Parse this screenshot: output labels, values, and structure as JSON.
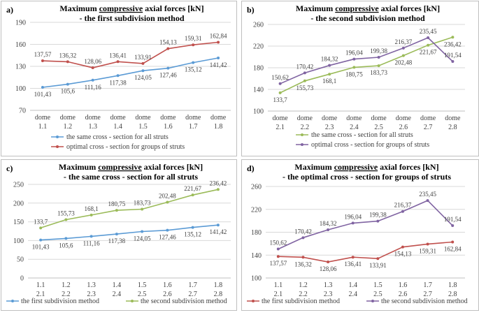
{
  "chart_data": [
    {
      "type": "line",
      "panel_label": "a)",
      "title_prefix": "Maximum ",
      "title_emphasis": "compressive",
      "title_suffix": " axial forces [kN]",
      "subtitle": "- the first subdivision method",
      "categories": [
        [
          "dome",
          "1.1"
        ],
        [
          "dome",
          "1.2"
        ],
        [
          "dome",
          "1.3"
        ],
        [
          "dome",
          "1.4"
        ],
        [
          "dome",
          "1.5"
        ],
        [
          "dome",
          "1.6"
        ],
        [
          "dome",
          "1.7"
        ],
        [
          "dome",
          "1.8"
        ]
      ],
      "ylim": [
        70,
        190
      ],
      "yticks": [
        70,
        100,
        130,
        160,
        190
      ],
      "series": [
        {
          "name": "the same cross - section for all struts",
          "color": "#5B9BD5",
          "values": [
            101.43,
            105.6,
            111.16,
            117.38,
            124.05,
            127.46,
            135.12,
            141.42
          ],
          "labels": [
            "101,43",
            "105,6",
            "111,16",
            "117,38",
            "124,05",
            "127,46",
            "135,12",
            "141,42"
          ],
          "label_pos": "below"
        },
        {
          "name": "optimal cross - section for groups of struts",
          "color": "#C0504D",
          "values": [
            137.57,
            136.32,
            128.06,
            136.41,
            133.91,
            154.13,
            159.31,
            162.84
          ],
          "labels": [
            "137,57",
            "136,32",
            "128,06",
            "136,41",
            "133,91",
            "154,13",
            "159,31",
            "162,84"
          ],
          "label_pos": "above"
        }
      ]
    },
    {
      "type": "line",
      "panel_label": "b)",
      "title_prefix": "Maximum ",
      "title_emphasis": "compressive",
      "title_suffix": " axial forces [kN]",
      "subtitle": "- the second subdivision method",
      "categories": [
        [
          "dome",
          "2.1"
        ],
        [
          "dome",
          "2.2"
        ],
        [
          "dome",
          "2.3"
        ],
        [
          "dome",
          "2.4"
        ],
        [
          "dome",
          "2.5"
        ],
        [
          "dome",
          "2.6"
        ],
        [
          "dome",
          "2.7"
        ],
        [
          "dome",
          "2.8"
        ]
      ],
      "ylim": [
        100,
        260
      ],
      "yticks": [
        100,
        140,
        180,
        220,
        260
      ],
      "series": [
        {
          "name": "the same cross - section for all struts",
          "color": "#9BBB59",
          "values": [
            133.7,
            155.73,
            168.1,
            180.75,
            183.73,
            202.48,
            221.67,
            236.42
          ],
          "labels": [
            "133,7",
            "155,73",
            "168,1",
            "180,75",
            "183,73",
            "202,48",
            "221,67",
            "236,42"
          ],
          "label_pos": "below"
        },
        {
          "name": "optimal cross - section for groups of struts",
          "color": "#8064A2",
          "values": [
            150.62,
            170.42,
            184.32,
            196.04,
            199.38,
            216.37,
            235.45,
            191.54
          ],
          "labels": [
            "150,62",
            "170,42",
            "184,32",
            "196,04",
            "199,38",
            "216,37",
            "235,45",
            "191,54"
          ],
          "label_pos": "above"
        }
      ]
    },
    {
      "type": "line",
      "panel_label": "c)",
      "title_prefix": "Maximum ",
      "title_emphasis": "compressive",
      "title_suffix": " axial forces [kN]",
      "subtitle": "- the same cross - section for all struts",
      "categories": [
        [
          "1.1",
          "2.1"
        ],
        [
          "1.2",
          "2.2"
        ],
        [
          "1.3",
          "2.3"
        ],
        [
          "1.4",
          "2.4"
        ],
        [
          "1.5",
          "2.5"
        ],
        [
          "1.6",
          "2.6"
        ],
        [
          "1.7",
          "2.7"
        ],
        [
          "1.8",
          "2.8"
        ]
      ],
      "ylim": [
        0,
        250
      ],
      "yticks": [
        0,
        50,
        100,
        150,
        200,
        250
      ],
      "series": [
        {
          "name": "the first subdivision method",
          "color": "#5B9BD5",
          "values": [
            101.43,
            105.6,
            111.16,
            117.38,
            124.05,
            127.46,
            135.12,
            141.42
          ],
          "labels": [
            "101,43",
            "105,6",
            "111,16",
            "117,38",
            "124,05",
            "127,46",
            "135,12",
            "141,42"
          ],
          "label_pos": "below"
        },
        {
          "name": "the second subdivision method",
          "color": "#9BBB59",
          "values": [
            133.7,
            155.73,
            168.1,
            180.75,
            183.73,
            202.48,
            221.67,
            236.42
          ],
          "labels": [
            "133,7",
            "155,73",
            "168,1",
            "180,75",
            "183,73",
            "202,48",
            "221,67",
            "236,42"
          ],
          "label_pos": "above"
        }
      ]
    },
    {
      "type": "line",
      "panel_label": "d)",
      "title_prefix": "Maximum ",
      "title_emphasis": "compressive",
      "title_suffix": " axial forces  [kN]",
      "subtitle": "- the optimal cross - section for groups of struts",
      "categories": [
        [
          "1.1",
          "2.1"
        ],
        [
          "1.2",
          "2.2"
        ],
        [
          "1.3",
          "2.3"
        ],
        [
          "1.4",
          "2.4"
        ],
        [
          "1.5",
          "2.5"
        ],
        [
          "1.6",
          "2.6"
        ],
        [
          "1.7",
          "2.7"
        ],
        [
          "1.8",
          "2.8"
        ]
      ],
      "ylim": [
        100,
        260
      ],
      "yticks": [
        100,
        140,
        180,
        220,
        260
      ],
      "series": [
        {
          "name": "the first subdivision method",
          "color": "#C0504D",
          "values": [
            137.57,
            136.32,
            128.06,
            136.41,
            133.91,
            154.13,
            159.31,
            162.84
          ],
          "labels": [
            "137,57",
            "136,32",
            "128,06",
            "136,41",
            "133,91",
            "154,13",
            "159,31",
            "162,84"
          ],
          "label_pos": "below"
        },
        {
          "name": "the second subdivision method",
          "color": "#8064A2",
          "values": [
            150.62,
            170.42,
            184.32,
            196.04,
            199.38,
            216.37,
            235.45,
            191.54
          ],
          "labels": [
            "150,62",
            "170,42",
            "184,32",
            "196,04",
            "199,38",
            "216,37",
            "235,45",
            "191,54"
          ],
          "label_pos": "above"
        }
      ]
    }
  ]
}
